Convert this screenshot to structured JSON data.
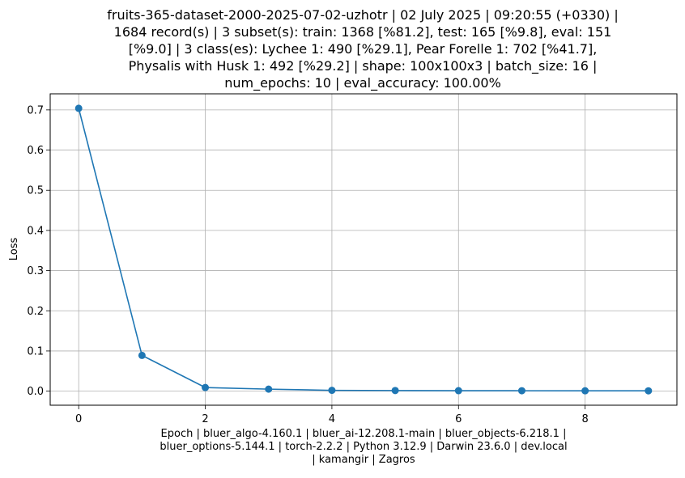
{
  "chart_data": {
    "type": "line",
    "title_lines": [
      "fruits-365-dataset-2000-2025-07-02-uzhotr | 02 July 2025 | 09:20:55 (+0330) |",
      "1684 record(s) | 3 subset(s): train: 1368 [%81.2], test: 165 [%9.8], eval: 151",
      "[%9.0] | 3 class(es): Lychee 1: 490 [%29.1], Pear Forelle 1: 702 [%41.7],",
      "Physalis with Husk 1: 492 [%29.2] | shape: 100x100x3 | batch_size: 16 |",
      "num_epochs: 10 | eval_accuracy: 100.00%"
    ],
    "xlabel_lines": [
      "Epoch | bluer_algo-4.160.1 | bluer_ai-12.208.1-main | bluer_objects-6.218.1 |",
      "bluer_options-5.144.1 | torch-2.2.2 | Python 3.12.9 | Darwin 23.6.0 | dev.local",
      "| kamangir | Zagros"
    ],
    "ylabel": "Loss",
    "x": [
      0,
      1,
      2,
      3,
      4,
      5,
      6,
      7,
      8,
      9
    ],
    "y": [
      0.704,
      0.089,
      0.009,
      0.005,
      0.002,
      0.0015,
      0.0012,
      0.001,
      0.0009,
      0.0008
    ],
    "xlim": [
      -0.45,
      9.45
    ],
    "ylim": [
      -0.035,
      0.74
    ],
    "xticks": [
      0,
      2,
      4,
      6,
      8
    ],
    "xtick_labels": [
      "0",
      "2",
      "4",
      "6",
      "8"
    ],
    "yticks": [
      0.0,
      0.1,
      0.2,
      0.3,
      0.4,
      0.5,
      0.6,
      0.7
    ],
    "ytick_labels": [
      "0.0",
      "0.1",
      "0.2",
      "0.3",
      "0.4",
      "0.5",
      "0.6",
      "0.7"
    ],
    "grid": true,
    "line_color": "#1f77b4",
    "grid_color": "#b0b0b0"
  }
}
